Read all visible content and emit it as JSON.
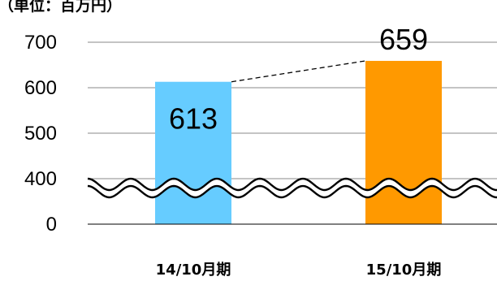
{
  "chart_data": {
    "type": "bar",
    "unit_label": "（単位：百万円）",
    "categories": [
      "14/10月期",
      "15/10月期"
    ],
    "values": [
      613,
      659
    ],
    "data_labels": [
      "613",
      "659"
    ],
    "bar_colors": [
      "#66CCFF",
      "#FF9900"
    ],
    "y_ticks": [
      "0",
      "400",
      "500",
      "600",
      "700"
    ],
    "ylim": [
      350,
      700
    ],
    "axis_break": "wavy break between 0 and 400",
    "gridlines": true,
    "connector": "dashed line between bar tops"
  }
}
